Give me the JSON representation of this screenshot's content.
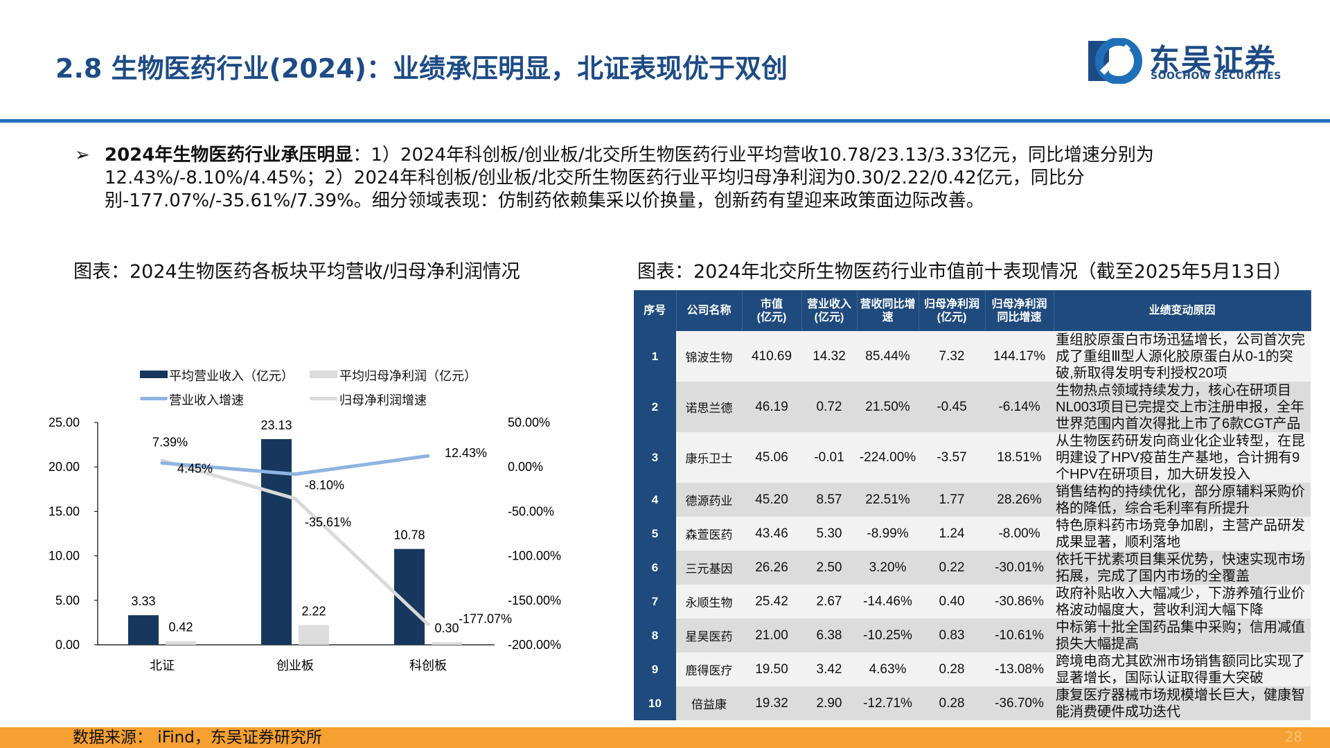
{
  "header": {
    "title": "2.8 生物医药行业(2024)：业绩承压明显，北证表现优于双创",
    "logo_cn": "东吴证券",
    "logo_en": "SOOCHOW SECURITIES"
  },
  "bullet": {
    "marker": "➢",
    "bold": "2024年生物医药行业承压明显",
    "text": "：1）2024年科创板/创业板/北交所生物医药行业平均营收10.78/23.13/3.33亿元，同比增速分别为12.43%/-8.10%/4.45%；2）2024年科创板/创业板/北交所生物医药行业平均归母净利润为0.30/2.22/0.42亿元，同比分别-177.07%/-35.61%/7.39%。细分领域表现：仿制药依赖集采以价换量，创新药有望迎来政策面边际改善。"
  },
  "left_title": "图表：2024生物医药各板块平均营收/归母净利润情况",
  "right_title": "图表：2024年北交所生物医药行业市值前十表现情况（截至2025年5月13日）",
  "chart_data": {
    "type": "bar+line",
    "categories": [
      "北证",
      "创业板",
      "科创板"
    ],
    "series": [
      {
        "name": "平均营业收入（亿元）",
        "type": "bar",
        "axis": "left",
        "values": [
          3.33,
          23.13,
          10.78
        ],
        "labels": [
          "3.33",
          "23.13",
          "10.78"
        ],
        "color": "#17375e"
      },
      {
        "name": "平均归母净利润（亿元）",
        "type": "bar",
        "axis": "left",
        "values": [
          0.42,
          2.22,
          0.3
        ],
        "labels": [
          "0.42",
          "2.22",
          "0.30"
        ],
        "color": "#dcdcdc"
      },
      {
        "name": "营业收入增速",
        "type": "line",
        "axis": "right",
        "values": [
          4.45,
          -8.1,
          12.43
        ],
        "labels": [
          "4.45%",
          "-8.10%",
          "12.43%"
        ],
        "color": "#8db4e2"
      },
      {
        "name": "归母净利润增速",
        "type": "line",
        "axis": "right",
        "values": [
          7.39,
          -35.61,
          -177.07
        ],
        "labels": [
          "7.39%",
          "-35.61%",
          "-177.07%"
        ],
        "color": "#d9d9d9"
      }
    ],
    "left_axis": {
      "ylim": [
        0,
        25
      ],
      "ticks": [
        "0.00",
        "5.00",
        "10.00",
        "15.00",
        "20.00",
        "25.00"
      ]
    },
    "right_axis": {
      "ylim": [
        -200,
        50
      ],
      "ticks": [
        "-200.00%",
        "-150.00%",
        "-100.00%",
        "-50.00%",
        "0.00%",
        "50.00%"
      ]
    },
    "legend": "top"
  },
  "table": {
    "headers": [
      "序号",
      "公司名称",
      "市值\n(亿元)",
      "营业收入\n(亿元)",
      "营收同比增\n速",
      "归母净利润\n(亿元)",
      "归母净利润\n同比增速",
      "业绩变动原因"
    ],
    "rows": [
      [
        "1",
        "锦波生物",
        "410.69",
        "14.32",
        "85.44%",
        "7.32",
        "144.17%",
        "重组胶原蛋白市场迅猛增长，公司首次完成了重组Ⅲ型人源化胶原蛋白从0-1的突破,新取得发明专利授权20项"
      ],
      [
        "2",
        "诺思兰德",
        "46.19",
        "0.72",
        "21.50%",
        "-0.45",
        "-6.14%",
        "生物热点领域持续发力，核心在研项目NL003项目已完提交上市注册申报，全年世界范围内首次得批上市了6款CGT产品"
      ],
      [
        "3",
        "康乐卫士",
        "45.06",
        "-0.01",
        "-224.00%",
        "-3.57",
        "18.51%",
        "从生物医药研发向商业化企业转型，在昆明建设了HPV疫苗生产基地，合计拥有9个HPV在研项目，加大研发投入"
      ],
      [
        "4",
        "德源药业",
        "45.20",
        "8.57",
        "22.51%",
        "1.77",
        "28.26%",
        "销售结构的持续优化，部分原辅料采购价格的降低，综合毛利率有所提升"
      ],
      [
        "5",
        "森萱医药",
        "43.46",
        "5.30",
        "-8.99%",
        "1.24",
        "-8.00%",
        "特色原料药市场竞争加剧，主营产品研发成果显著，顺利落地"
      ],
      [
        "6",
        "三元基因",
        "26.26",
        "2.50",
        "3.20%",
        "0.22",
        "-30.01%",
        "依托干扰素项目集采优势，快速实现市场拓展，完成了国内市场的全覆盖"
      ],
      [
        "7",
        "永顺生物",
        "25.42",
        "2.67",
        "-14.46%",
        "0.40",
        "-30.86%",
        "政府补贴收入大幅减少，下游养殖行业价格波动幅度大，营收利润大幅下降"
      ],
      [
        "8",
        "星昊医药",
        "21.00",
        "6.38",
        "-10.25%",
        "0.83",
        "-10.61%",
        "中标第十批全国药品集中采购；信用减值损失大幅提高"
      ],
      [
        "9",
        "鹿得医疗",
        "19.50",
        "3.42",
        "4.63%",
        "0.28",
        "-13.08%",
        "跨境电商尤其欧洲市场销售额同比实现了显著增长，国际认证取得重大突破"
      ],
      [
        "10",
        "倍益康",
        "19.32",
        "2.90",
        "-12.71%",
        "0.28",
        "-36.70%",
        "康复医疗器械市场规模增长巨大，健康智能消费硬件成功迭代"
      ]
    ]
  },
  "footer": {
    "source": "数据来源： iFind，东吴证券研究所",
    "page": "28"
  }
}
